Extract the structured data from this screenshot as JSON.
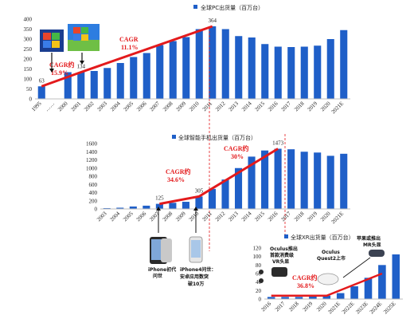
{
  "colors": {
    "bar": "#1f5fc8",
    "trend": "#e31a1c",
    "dashed": "#e31a1c"
  },
  "chart_data": [
    {
      "type": "bar",
      "title": "全球PC出货量（百万台）",
      "legend_position": "top-center",
      "ylim": [
        0,
        400
      ],
      "yticks": [
        0,
        50,
        100,
        150,
        200,
        250,
        300,
        350,
        400
      ],
      "categories": [
        "1995",
        "……",
        "2000",
        "2001",
        "2002",
        "2003",
        "2004",
        "2005",
        "2006",
        "2007",
        "2008",
        "2009",
        "2010",
        "2011",
        "2012",
        "2013",
        "2014",
        "2015",
        "2016",
        "2017",
        "2018",
        "2019",
        "2020",
        "2021E"
      ],
      "tick_labels": [
        "1995",
        "……",
        "2000",
        "2001",
        "2002",
        "2003",
        "2004",
        "2005",
        "2006",
        "2007",
        "2008",
        "2009",
        "2010",
        "2011",
        "2012",
        "2013",
        "2014",
        "2015",
        "2016",
        "2017",
        "2018",
        "2019",
        "2020",
        "2021E"
      ],
      "series": [
        {
          "name": "全球PC出货量（百万台）",
          "values": [
            63,
            null,
            134,
            134,
            140,
            155,
            180,
            210,
            230,
            270,
            290,
            310,
            350,
            364,
            350,
            315,
            308,
            275,
            262,
            260,
            262,
            267,
            300,
            345
          ]
        }
      ],
      "data_labels": [
        {
          "category": "1995",
          "text": "63"
        },
        {
          "category": "2001",
          "text": "134"
        },
        {
          "category": "2011",
          "text": "364"
        }
      ],
      "annotations": [
        {
          "text": "CAGR约",
          "text2": "15.9%"
        },
        {
          "text": "CAGR",
          "text2": "11.1%"
        }
      ],
      "trend_points": [
        [
          "1995",
          63
        ],
        [
          "2001",
          134
        ],
        [
          "2011",
          364
        ]
      ]
    },
    {
      "type": "bar",
      "title": "全球智能手机出货量（百万台）",
      "legend_position": "top-center",
      "ylim": [
        0,
        1600
      ],
      "yticks": [
        0,
        200,
        400,
        600,
        800,
        1000,
        1200,
        1400,
        1600
      ],
      "categories": [
        "2003",
        "2004",
        "2005",
        "2006",
        "2007",
        "2008",
        "2009",
        "2010",
        "2011",
        "2012",
        "2013",
        "2014",
        "2015",
        "2016",
        "2017",
        "2018",
        "2019",
        "2020",
        "2021E"
      ],
      "series": [
        {
          "name": "全球智能手机出货量（百万台）",
          "values": [
            20,
            30,
            60,
            80,
            125,
            150,
            175,
            305,
            490,
            720,
            1000,
            1280,
            1430,
            1473,
            1460,
            1400,
            1380,
            1300,
            1350
          ]
        }
      ],
      "data_labels": [
        {
          "category": "2007",
          "text": "125"
        },
        {
          "category": "2010",
          "text": "305"
        },
        {
          "category": "2016",
          "text": "1473"
        }
      ],
      "annotations": [
        {
          "text": "CAGR约",
          "text2": "34.6%"
        },
        {
          "text": "CAGR约",
          "text2": "30%"
        }
      ],
      "trend_points": [
        [
          "2007",
          125
        ],
        [
          "2010",
          305
        ],
        [
          "2016",
          1473
        ]
      ]
    },
    {
      "type": "bar",
      "title": "全球XR出货量（百万台）",
      "legend_position": "top-center",
      "ylim": [
        0,
        120
      ],
      "yticks": [
        0,
        20,
        40,
        60,
        80,
        100,
        120
      ],
      "categories": [
        "2016",
        "2017",
        "2018",
        "2019",
        "2020",
        "2021E",
        "2022E",
        "2023E",
        "2024E",
        "2025E"
      ],
      "series": [
        {
          "name": "全球XR出货量（百万台）",
          "values": [
            5,
            5,
            5,
            6,
            8,
            14,
            30,
            50,
            80,
            105
          ]
        }
      ],
      "data_labels": [],
      "annotations": [
        {
          "text": "CAGR约",
          "text2": "36.8%"
        }
      ],
      "trend_points": [
        [
          "2016",
          8
        ],
        [
          "2020",
          8
        ],
        [
          "2024E",
          60
        ]
      ]
    }
  ],
  "notes": {
    "iphone1": [
      "iPhone初代",
      "问世"
    ],
    "iphone4": [
      "iPhone4问世：",
      "安卓应用数突",
      "破10万"
    ],
    "oculus_dk": [
      "Oculus推出",
      "首款消费级",
      "VR头显"
    ],
    "quest2": [
      "Oculus",
      "Quest2上市"
    ],
    "apple_mr": [
      "苹果或推出",
      "MR头显"
    ]
  }
}
